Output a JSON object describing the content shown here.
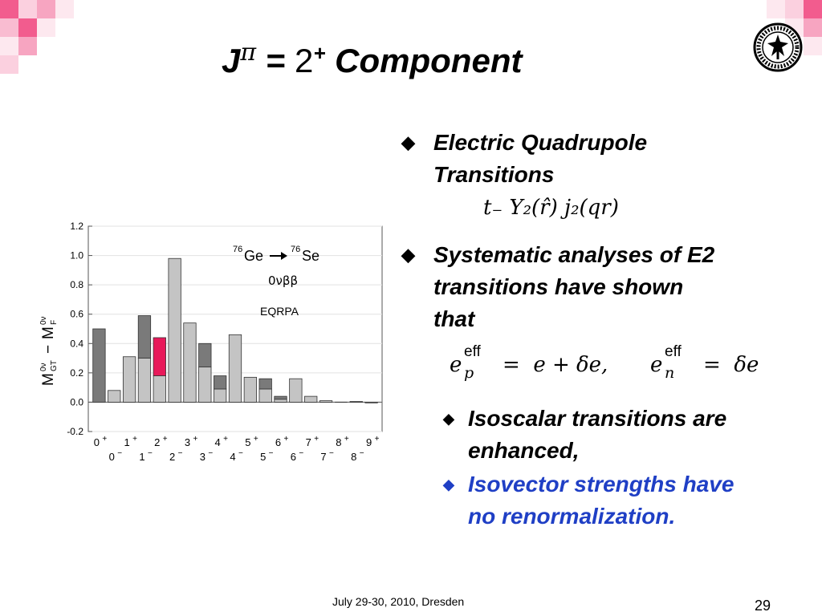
{
  "title": {
    "j": "J",
    "pi": "π",
    "eq": " = ",
    "two": "2",
    "plus": "+",
    "word": " Component"
  },
  "bullets": [
    {
      "line1": "Electric Quadrupole",
      "line2": "Transitions"
    },
    {
      "line1": "Systematic analyses of E2",
      "line2": "transitions have shown",
      "line3": "that"
    }
  ],
  "sub_bullets": [
    {
      "line1": "Isoscalar transitions are",
      "line2": "enhanced,"
    },
    {
      "line1": "Isovector strengths have",
      "line2": "no renormalization."
    }
  ],
  "formula1": "t₋ Y₂(r̂) j₂(qr)",
  "formula2": {
    "ep_lhs": "e",
    "ep_sup": "eff",
    "ep_sub": "p",
    "ep_rhs": "=  e + δe,",
    "en_lhs": "e",
    "en_sup": "eff",
    "en_sub": "n",
    "en_rhs": "=  δe"
  },
  "footer": {
    "date": "July 29-30, 2010,  Dresden",
    "page": "29"
  },
  "colors": {
    "blue_text": "#1f3fc5",
    "bar_dark": "#7a7a7a",
    "bar_light": "#c4c4c4",
    "bar_highlight": "#e8195a",
    "corner_pink": "#f25c8e"
  },
  "chart_data": {
    "type": "bar",
    "ylim": [
      -0.2,
      1.2
    ],
    "yticks": [
      "1.2",
      "1.0",
      "0.8",
      "0.6",
      "0.4",
      "0.2",
      "0.0",
      "-0.2"
    ],
    "ylabel_main": "M",
    "ylabel_gt_sup": "0ν",
    "ylabel_gt_sub": "GT",
    "ylabel_minus": "−",
    "ylabel_f_sup": "0ν",
    "ylabel_f_sub": "F",
    "annotation_reaction": {
      "a1": "76",
      "n1": "Ge",
      "a2": "76",
      "n2": "Se"
    },
    "annotation_decay": "0νββ",
    "annotation_model": "EQRPA",
    "top_labels": [
      "0",
      "1",
      "2",
      "3",
      "4",
      "5",
      "6",
      "7",
      "8",
      "9"
    ],
    "top_label_sign": "+",
    "bottom_labels": [
      "0",
      "1",
      "2",
      "3",
      "4",
      "5",
      "6",
      "7",
      "8"
    ],
    "bottom_label_sign": "−",
    "bars": [
      {
        "label": "0+",
        "total": 0.5,
        "light": 0.0,
        "dark": 0.5
      },
      {
        "label": "0-",
        "total": 0.08,
        "light": 0.08,
        "dark": 0.0
      },
      {
        "label": "1+",
        "total": 0.31,
        "light": 0.31,
        "dark": 0.0
      },
      {
        "label": "1-",
        "total": 0.59,
        "light": 0.3,
        "dark": 0.29
      },
      {
        "label": "2+",
        "total": 0.44,
        "light": 0.18,
        "dark": 0.0,
        "highlight": 0.26
      },
      {
        "label": "2-",
        "total": 0.98,
        "light": 0.98,
        "dark": 0.0
      },
      {
        "label": "3+",
        "total": 0.54,
        "light": 0.54,
        "dark": 0.0
      },
      {
        "label": "3-",
        "total": 0.4,
        "light": 0.24,
        "dark": 0.16
      },
      {
        "label": "4+",
        "total": 0.18,
        "light": 0.09,
        "dark": 0.09
      },
      {
        "label": "4-",
        "total": 0.46,
        "light": 0.46,
        "dark": 0.0
      },
      {
        "label": "5+",
        "total": 0.17,
        "light": 0.17,
        "dark": 0.0
      },
      {
        "label": "5-",
        "total": 0.16,
        "light": 0.09,
        "dark": 0.07
      },
      {
        "label": "6+",
        "total": 0.04,
        "light": 0.02,
        "dark": 0.02
      },
      {
        "label": "6-",
        "total": 0.16,
        "light": 0.16,
        "dark": 0.0
      },
      {
        "label": "7+",
        "total": 0.04,
        "light": 0.04,
        "dark": 0.0
      },
      {
        "label": "7-",
        "total": 0.01,
        "light": 0.01,
        "dark": 0.0
      },
      {
        "label": "8+",
        "total": 0.0,
        "light": 0.0,
        "dark": 0.0
      },
      {
        "label": "8-",
        "total": 0.005,
        "light": 0.005,
        "dark": 0.0
      },
      {
        "label": "9+",
        "total": -0.005,
        "light": -0.005,
        "dark": 0.0
      }
    ]
  }
}
